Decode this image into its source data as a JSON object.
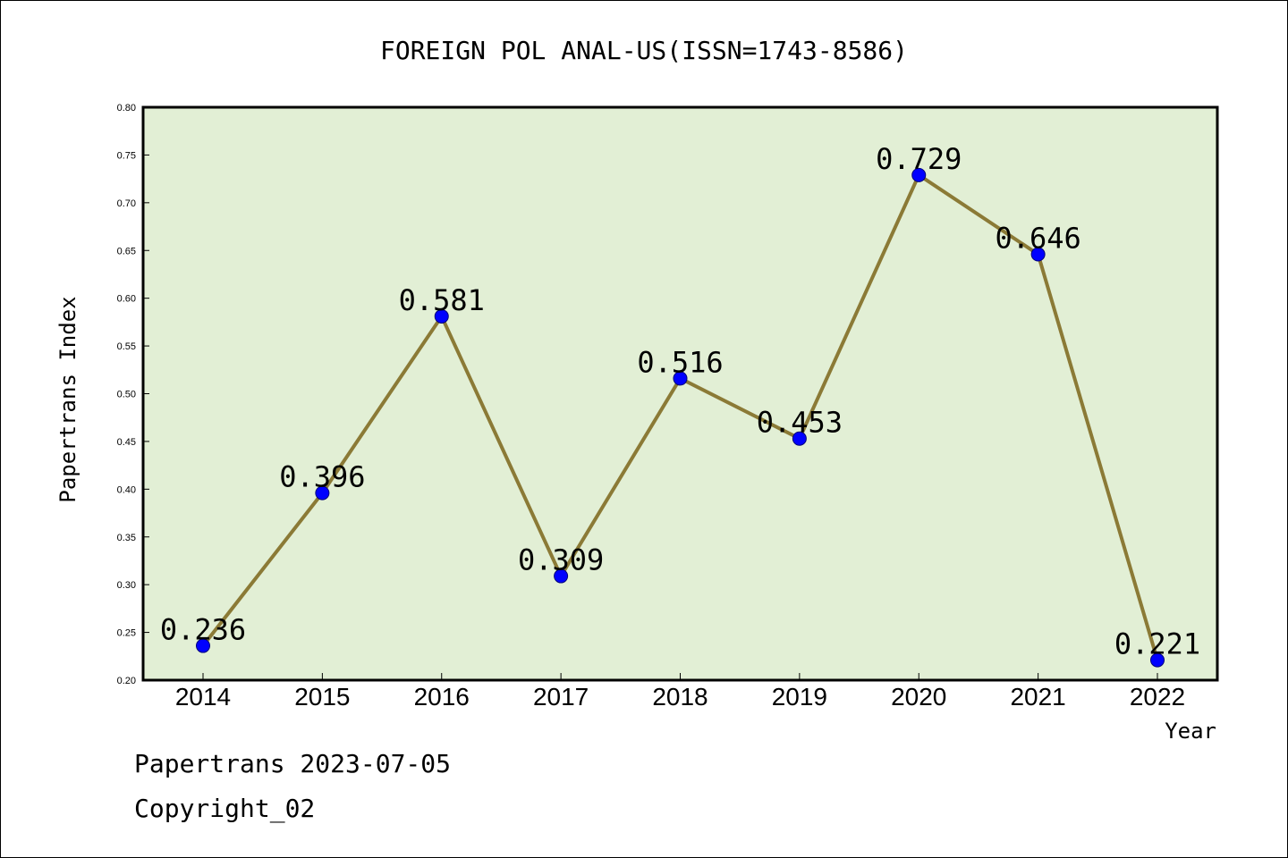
{
  "chart_data": {
    "type": "line",
    "title": "FOREIGN POL ANAL-US(ISSN=1743-8586)",
    "xlabel": "Year",
    "ylabel": "Papertrans Index",
    "categories": [
      "2014",
      "2015",
      "2016",
      "2017",
      "2018",
      "2019",
      "2020",
      "2021",
      "2022"
    ],
    "values": [
      0.236,
      0.396,
      0.581,
      0.309,
      0.516,
      0.453,
      0.729,
      0.646,
      0.221
    ],
    "data_labels": [
      "0.236",
      "0.396",
      "0.581",
      "0.309",
      "0.516",
      "0.453",
      "0.729",
      "0.646",
      "0.221"
    ],
    "ylim": [
      0.2,
      0.8
    ],
    "yticks": [
      "0.20",
      "0.25",
      "0.30",
      "0.35",
      "0.40",
      "0.45",
      "0.50",
      "0.55",
      "0.60",
      "0.65",
      "0.70",
      "0.75",
      "0.80"
    ],
    "grid": false,
    "colors": {
      "plot_bg": "#e2efd5",
      "line": "#8b7a36",
      "marker": "#0000ff"
    }
  },
  "footer": {
    "line1": "Papertrans 2023-07-05",
    "line2": "Copyright_02"
  }
}
